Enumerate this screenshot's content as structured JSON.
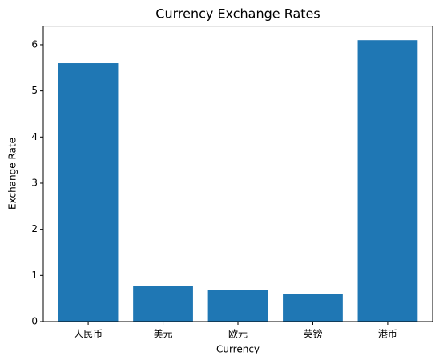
{
  "chart_data": {
    "type": "bar",
    "title": "Currency Exchange Rates",
    "x_label": "Currency",
    "y_label": "Exchange Rate",
    "categories": [
      "人民币",
      "美元",
      "欧元",
      "英镑",
      "港币"
    ],
    "values": [
      5.6,
      0.78,
      0.69,
      0.59,
      6.1
    ],
    "color": "#1f77b4",
    "ylim": [
      0,
      6.405
    ],
    "yticks": [
      0,
      1,
      2,
      3,
      4,
      5,
      6
    ],
    "grid": false
  }
}
